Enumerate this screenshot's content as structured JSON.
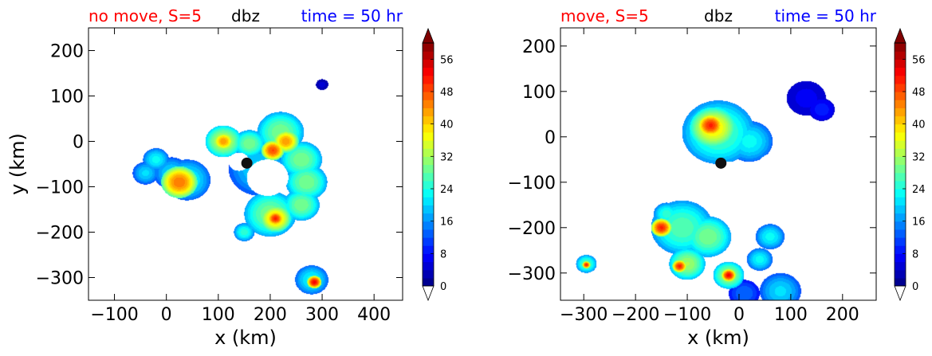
{
  "panels": [
    {
      "title_left": "no move, S=5",
      "title_center": "dbz",
      "title_right": "time = 50 hr"
    },
    {
      "title_left": "move, S=5",
      "title_center": "dbz",
      "title_right": "time = 50 hr"
    }
  ],
  "colors": {
    "title_left": "#ff0000",
    "title_center": "#000000",
    "title_right": "#0000ff"
  },
  "chart_data": [
    {
      "type": "heatmap",
      "variable": "dbz",
      "xlabel": "x (km)",
      "ylabel": "y (km)",
      "xlim": [
        -150,
        455
      ],
      "ylim": [
        -350,
        250
      ],
      "xticks": [
        -100,
        0,
        100,
        200,
        300,
        400
      ],
      "yticks": [
        -300,
        -200,
        -100,
        0,
        100,
        200
      ],
      "xtick_labels": [
        "−100",
        "0",
        "100",
        "200",
        "300",
        "400"
      ],
      "ytick_labels": [
        "−300",
        "−200",
        "−100",
        "0",
        "100",
        "200"
      ],
      "marker": {
        "x": 155,
        "y": -48
      },
      "colorbar": {
        "min": 0,
        "max": 60,
        "step": 2,
        "extend": "both",
        "ticks": [
          0,
          8,
          16,
          24,
          32,
          40,
          48,
          56
        ],
        "tick_labels": [
          "0",
          "8",
          "16",
          "24",
          "32",
          "40",
          "48",
          "56"
        ]
      },
      "regions": [
        {
          "cx": 180,
          "cy": -60,
          "r": 60,
          "value": 18
        },
        {
          "cx": 40,
          "cy": -85,
          "r": 45,
          "value": 20
        },
        {
          "cx": 25,
          "cy": -90,
          "r": 35,
          "value": 40
        },
        {
          "cx": 10,
          "cy": -70,
          "r": 35,
          "value": 18
        },
        {
          "cx": 110,
          "cy": 0,
          "r": 35,
          "value": 30
        },
        {
          "cx": 110,
          "cy": 0,
          "r": 20,
          "value": 38
        },
        {
          "cx": 160,
          "cy": -5,
          "r": 30,
          "value": 26
        },
        {
          "cx": 220,
          "cy": 20,
          "r": 45,
          "value": 26
        },
        {
          "cx": 230,
          "cy": 0,
          "r": 25,
          "value": 38
        },
        {
          "cx": 205,
          "cy": -20,
          "r": 22,
          "value": 42
        },
        {
          "cx": 260,
          "cy": -40,
          "r": 40,
          "value": 26
        },
        {
          "cx": 270,
          "cy": -90,
          "r": 40,
          "value": 26
        },
        {
          "cx": 260,
          "cy": -140,
          "r": 35,
          "value": 26
        },
        {
          "cx": 200,
          "cy": -160,
          "r": 50,
          "value": 26
        },
        {
          "cx": 210,
          "cy": -170,
          "r": 30,
          "value": 36
        },
        {
          "cx": 210,
          "cy": -170,
          "r": 16,
          "value": 44
        },
        {
          "cx": 150,
          "cy": -200,
          "r": 20,
          "value": 22
        },
        {
          "cx": 280,
          "cy": -305,
          "r": 32,
          "value": 20
        },
        {
          "cx": 285,
          "cy": -310,
          "r": 14,
          "value": 46
        },
        {
          "cx": 300,
          "cy": 125,
          "r": 12,
          "value": 4
        },
        {
          "cx": -20,
          "cy": -40,
          "r": 25,
          "value": 20
        },
        {
          "cx": -40,
          "cy": -70,
          "r": 25,
          "value": 18
        }
      ],
      "holes": [
        {
          "cx": 195,
          "cy": -80,
          "r": 40
        },
        {
          "cx": 140,
          "cy": -45,
          "r": 20
        }
      ]
    },
    {
      "type": "heatmap",
      "variable": "dbz",
      "xlabel": "x (km)",
      "ylabel": "",
      "xlim": [
        -345,
        265
      ],
      "ylim": [
        -360,
        240
      ],
      "xticks": [
        -300,
        -200,
        -100,
        0,
        100,
        200
      ],
      "yticks": [
        -300,
        -200,
        -100,
        0,
        100,
        200
      ],
      "xtick_labels": [
        "−300",
        "−200",
        "−100",
        "0",
        "100",
        "200"
      ],
      "ytick_labels": [
        "−300",
        "−200",
        "−100",
        "0",
        "100",
        "200"
      ],
      "marker": {
        "x": -35,
        "y": -58
      },
      "colorbar": {
        "min": 0,
        "max": 60,
        "step": 2,
        "extend": "both",
        "ticks": [
          0,
          8,
          16,
          24,
          32,
          40,
          48,
          56
        ],
        "tick_labels": [
          "0",
          "8",
          "16",
          "24",
          "32",
          "40",
          "48",
          "56"
        ]
      },
      "regions": [
        {
          "cx": -40,
          "cy": 10,
          "r": 70,
          "value": 24
        },
        {
          "cx": -50,
          "cy": 20,
          "r": 45,
          "value": 34
        },
        {
          "cx": -55,
          "cy": 25,
          "r": 25,
          "value": 44
        },
        {
          "cx": 20,
          "cy": -10,
          "r": 45,
          "value": 20
        },
        {
          "cx": 130,
          "cy": 85,
          "r": 38,
          "value": 6
        },
        {
          "cx": 160,
          "cy": 60,
          "r": 25,
          "value": 8
        },
        {
          "cx": -110,
          "cy": -200,
          "r": 60,
          "value": 24
        },
        {
          "cx": -140,
          "cy": -170,
          "r": 25,
          "value": 22
        },
        {
          "cx": -150,
          "cy": -200,
          "r": 20,
          "value": 44
        },
        {
          "cx": -60,
          "cy": -220,
          "r": 45,
          "value": 26
        },
        {
          "cx": -100,
          "cy": -280,
          "r": 35,
          "value": 28
        },
        {
          "cx": -115,
          "cy": -285,
          "r": 14,
          "value": 44
        },
        {
          "cx": -20,
          "cy": -305,
          "r": 30,
          "value": 28
        },
        {
          "cx": -20,
          "cy": -305,
          "r": 14,
          "value": 46
        },
        {
          "cx": 40,
          "cy": -270,
          "r": 25,
          "value": 20
        },
        {
          "cx": 60,
          "cy": -220,
          "r": 28,
          "value": 20
        },
        {
          "cx": 80,
          "cy": -340,
          "r": 40,
          "value": 18
        },
        {
          "cx": 10,
          "cy": -345,
          "r": 30,
          "value": 12
        },
        {
          "cx": -295,
          "cy": -280,
          "r": 20,
          "value": 24
        },
        {
          "cx": -295,
          "cy": -282,
          "r": 8,
          "value": 44
        }
      ],
      "holes": [
        {
          "cx": 10,
          "cy": -95,
          "r": 40
        },
        {
          "cx": 70,
          "cy": -70,
          "r": 35
        },
        {
          "cx": -20,
          "cy": -70,
          "r": 15
        }
      ]
    }
  ]
}
